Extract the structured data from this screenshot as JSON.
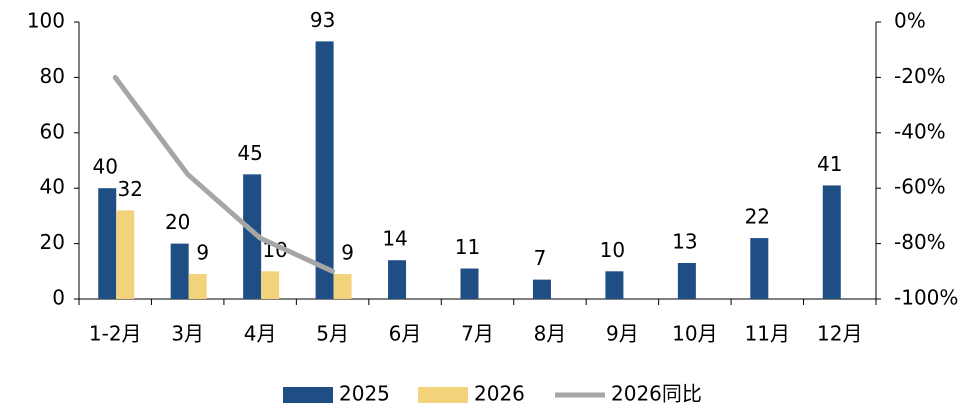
{
  "chart_data": {
    "type": "bar",
    "categories": [
      "1-2月",
      "3月",
      "4月",
      "5月",
      "6月",
      "7月",
      "8月",
      "9月",
      "10月",
      "11月",
      "12月"
    ],
    "series": [
      {
        "name": "2025",
        "color": "#1f4e84",
        "values": [
          40,
          20,
          45,
          93,
          14,
          11,
          7,
          10,
          13,
          22,
          41
        ]
      },
      {
        "name": "2026",
        "color": "#f2d27a",
        "values": [
          32,
          9,
          10,
          9,
          null,
          null,
          null,
          null,
          null,
          null,
          null
        ]
      },
      {
        "name": "2026同比",
        "type": "line",
        "axis": "y2",
        "color": "#a6a6a6",
        "values": [
          -20,
          -55,
          -78,
          -90,
          null,
          null,
          null,
          null,
          null,
          null,
          null
        ]
      }
    ],
    "ylim": [
      0,
      100
    ],
    "yticks": [
      0,
      20,
      40,
      60,
      80,
      100
    ],
    "y2lim": [
      -100,
      0
    ],
    "y2ticks": [
      {
        "value": -100,
        "label": "-100%"
      },
      {
        "value": -80,
        "label": "-80%"
      },
      {
        "value": -60,
        "label": "-60%"
      },
      {
        "value": -40,
        "label": "-40%"
      },
      {
        "value": -20,
        "label": "-20%"
      },
      {
        "value": 0,
        "label": "0%"
      }
    ],
    "legend": "bottom"
  }
}
